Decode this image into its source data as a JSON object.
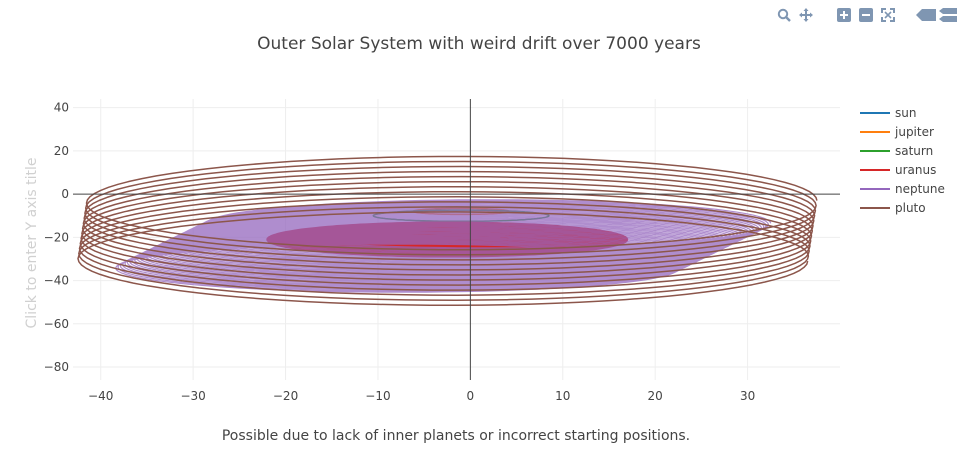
{
  "chart_data": {
    "type": "line",
    "title": "Outer Solar System  with weird drift over 7000 years",
    "xlabel": "Possible due to lack of inner planets or incorrect starting positions.",
    "ylabel": "Click to enter Y axis title",
    "xlim": [
      -43,
      40
    ],
    "ylim": [
      -86,
      44
    ],
    "xticks": [
      -40,
      -30,
      -20,
      -10,
      0,
      10,
      20,
      30
    ],
    "yticks": [
      40,
      20,
      0,
      -20,
      -40,
      -60,
      -80
    ],
    "xtick_labels": [
      "−40",
      "−30",
      "−20",
      "−10",
      "0",
      "10",
      "20",
      "30"
    ],
    "ytick_labels": [
      "40",
      "20",
      "0",
      "−20",
      "−40",
      "−60",
      "−80"
    ],
    "grid": true,
    "legend_position": "right",
    "series": [
      {
        "name": "sun",
        "color": "#1f77b4",
        "center": [
          0,
          0
        ],
        "rx": 0.01,
        "ry": 0.01,
        "drift": [
          0,
          0
        ],
        "turns": 1,
        "fill": false
      },
      {
        "name": "jupiter",
        "color": "#ff7f0e",
        "center": [
          -1,
          -8
        ],
        "rx": 5.2,
        "ry": 1.4,
        "drift": [
          0,
          0
        ],
        "turns": 1,
        "fill": false
      },
      {
        "name": "saturn",
        "color": "#2ca02c",
        "center": [
          -1,
          -10
        ],
        "rx": 9.5,
        "ry": 2.6,
        "drift": [
          0,
          0
        ],
        "turns": 1,
        "fill": false
      },
      {
        "name": "uranus",
        "color": "#d62728",
        "center": [
          -2.5,
          -21
        ],
        "rx": 19.5,
        "ry": 8,
        "drift": [
          0,
          0
        ],
        "turns": 1,
        "fill": true
      },
      {
        "name": "neptune",
        "color": "#9467bd",
        "center": [
          -3,
          -24
        ],
        "rx": 30.5,
        "ry": 11,
        "drift": [
          -10,
          -21
        ],
        "turns": 40,
        "fill": false
      },
      {
        "name": "pluto",
        "color": "#8c564b",
        "center": [
          -2.5,
          -17
        ],
        "rx": 39.5,
        "ry": 21,
        "drift": [
          -1,
          -28
        ],
        "turns": 12,
        "fill": false
      }
    ]
  },
  "modebar": {
    "icons": [
      "zoom-icon",
      "pan-icon",
      "zoom-in-icon",
      "zoom-out-icon",
      "autoscale-icon",
      "hover-closest-icon",
      "hover-compare-icon"
    ]
  }
}
